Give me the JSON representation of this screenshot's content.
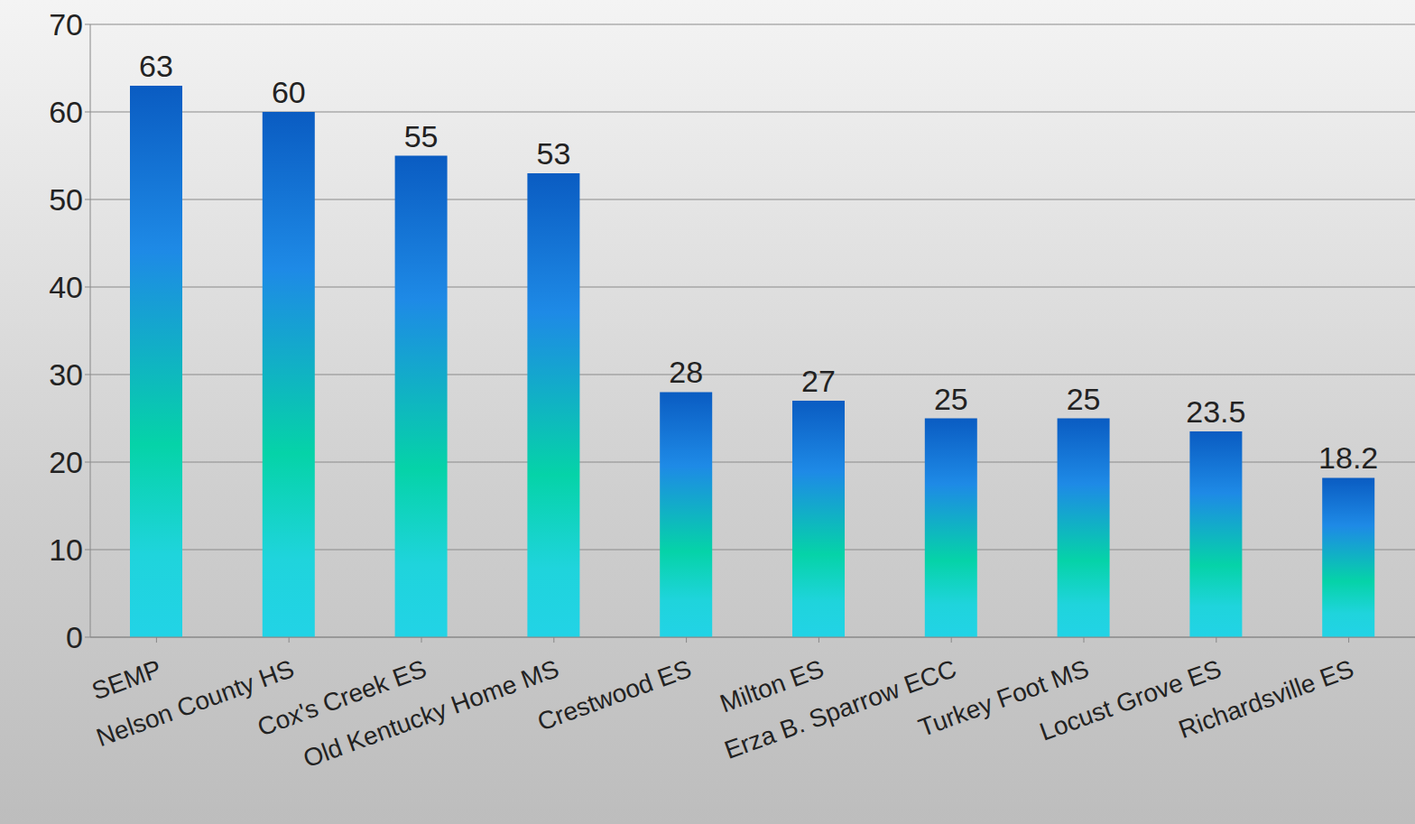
{
  "chart_data": {
    "type": "bar",
    "categories": [
      "SEMP",
      "Nelson County HS",
      "Cox's Creek ES",
      "Old Kentucky Home MS",
      "Crestwood ES",
      "Milton ES",
      "Erza B. Sparrow ECC",
      "Turkey Foot MS",
      "Locust Grove ES",
      "Richardsville ES"
    ],
    "values": [
      63,
      60,
      55,
      53,
      28,
      27,
      25,
      25,
      23.5,
      18.2
    ],
    "color": "#0a5cc2",
    "ylim": [
      0,
      70
    ],
    "yticks": [
      0,
      10,
      20,
      30,
      40,
      50,
      60,
      70
    ],
    "grid": true,
    "data_labels": true
  }
}
